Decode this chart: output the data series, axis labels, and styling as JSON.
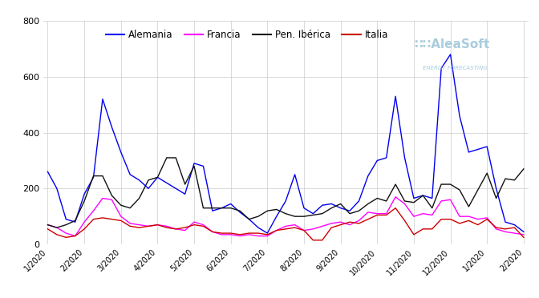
{
  "legend": [
    "Alemania",
    "Francia",
    "Pen. Ibérica",
    "Italia"
  ],
  "colors": [
    "#0000ee",
    "#ff00ff",
    "#111111",
    "#cc0000"
  ],
  "ylim": [
    0,
    800
  ],
  "yticks": [
    0,
    200,
    400,
    600,
    800
  ],
  "background_color": "#ffffff",
  "grid_color": "#cccccc",
  "aleasoft_color": "#aaccdd",
  "n_weeks": 53,
  "alemania": [
    260,
    200,
    90,
    80,
    180,
    240,
    520,
    420,
    330,
    250,
    230,
    200,
    240,
    220,
    200,
    180,
    290,
    280,
    120,
    130,
    145,
    115,
    90,
    60,
    40,
    100,
    155,
    250,
    130,
    110,
    140,
    145,
    130,
    120,
    155,
    245,
    300,
    310,
    530,
    310,
    165,
    175,
    165,
    630,
    680,
    460,
    330,
    340,
    350,
    200,
    80,
    70,
    45
  ],
  "francia": [
    70,
    60,
    40,
    30,
    80,
    120,
    165,
    160,
    100,
    75,
    70,
    65,
    70,
    65,
    55,
    50,
    80,
    70,
    45,
    35,
    35,
    30,
    35,
    30,
    30,
    50,
    65,
    70,
    50,
    55,
    65,
    75,
    80,
    70,
    85,
    115,
    110,
    110,
    170,
    145,
    100,
    110,
    105,
    155,
    160,
    100,
    100,
    90,
    95,
    55,
    45,
    40,
    35
  ],
  "iberica": [
    70,
    60,
    70,
    85,
    155,
    245,
    245,
    175,
    140,
    130,
    165,
    230,
    240,
    310,
    310,
    215,
    280,
    130,
    130,
    130,
    130,
    120,
    90,
    100,
    120,
    125,
    110,
    100,
    100,
    105,
    110,
    130,
    145,
    110,
    120,
    145,
    165,
    155,
    215,
    155,
    150,
    175,
    130,
    215,
    215,
    195,
    135,
    195,
    255,
    165,
    235,
    230,
    270
  ],
  "italia": [
    55,
    35,
    25,
    30,
    55,
    90,
    95,
    90,
    85,
    65,
    60,
    65,
    70,
    60,
    55,
    60,
    70,
    65,
    45,
    40,
    40,
    35,
    40,
    40,
    35,
    50,
    55,
    60,
    50,
    15,
    15,
    60,
    70,
    80,
    75,
    90,
    105,
    105,
    130,
    85,
    35,
    55,
    55,
    90,
    90,
    75,
    85,
    70,
    90,
    60,
    55,
    60,
    25
  ],
  "tick_positions": [
    0,
    4,
    8,
    12,
    16,
    20,
    24,
    28,
    32,
    36,
    40,
    44,
    48,
    52
  ],
  "tick_labels": [
    "1/2020",
    "2/2020",
    "3/2020",
    "4/2020",
    "5/2020",
    "6/2020",
    "7/2020",
    "8/2020",
    "9/2020",
    "10/2020",
    "11/2020",
    "12/2020",
    "1/2020",
    "2/2020"
  ]
}
